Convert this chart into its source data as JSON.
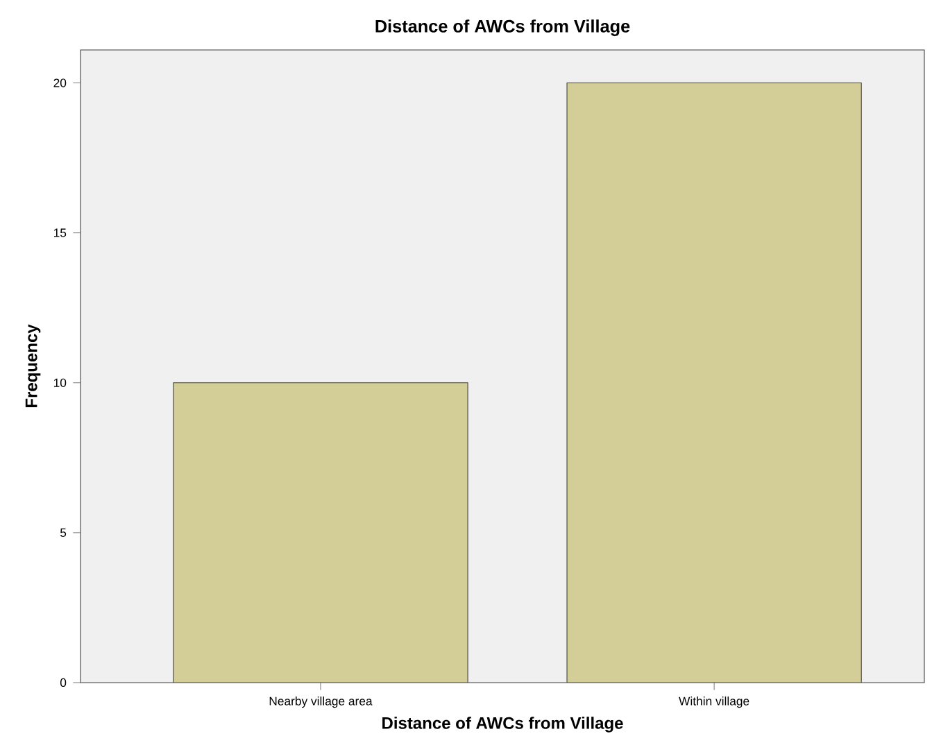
{
  "chart_data": {
    "type": "bar",
    "title": "Distance of AWCs from Village",
    "xlabel": "Distance of AWCs from Village",
    "ylabel": "Frequency",
    "categories": [
      "Nearby village area",
      "Within village"
    ],
    "values": [
      10,
      20
    ],
    "color": "#d3ce97",
    "ylim": [
      0,
      21.1
    ],
    "yticks": [
      0,
      5,
      10,
      15,
      20
    ],
    "grid": false
  }
}
